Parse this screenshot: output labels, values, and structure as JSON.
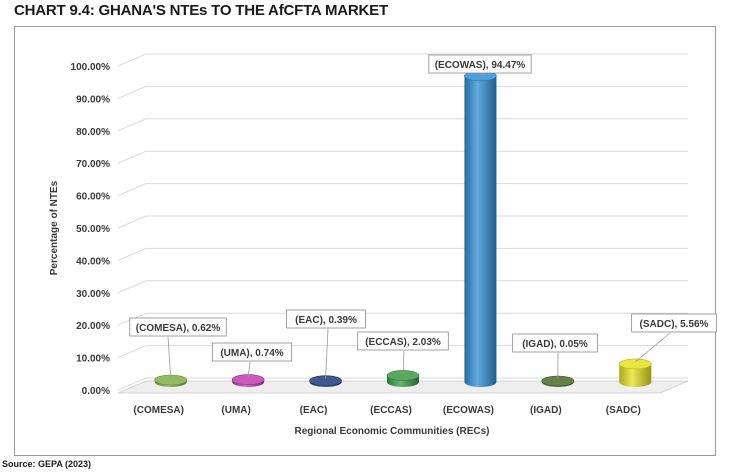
{
  "title": "CHART 9.4: GHANA'S NTEs TO THE AfCFTA MARKET",
  "source": "Source: GEPA (2023)",
  "chart_data": {
    "type": "bar",
    "categories": [
      "(COMESA)",
      "(UMA)",
      "(EAC)",
      "(ECCAS)",
      "(ECOWAS)",
      "(IGAD)",
      "(SADC)"
    ],
    "values": [
      0.62,
      0.74,
      0.39,
      2.03,
      94.47,
      0.05,
      5.56
    ],
    "data_labels": [
      "(COMESA), 0.62%",
      "(UMA), 0.74%",
      "(EAC), 0.39%",
      "(ECCAS), 2.03%",
      "(ECOWAS), 94.47%",
      "(IGAD), 0.05%",
      "(SADC), 5.56%"
    ],
    "colors": [
      "#7fae45",
      "#c03cb0",
      "#1f3d7a",
      "#3c9a48",
      "#2e8fd6",
      "#4a6b2a",
      "#e6e020"
    ],
    "yticks": [
      "0.00%",
      "10.00%",
      "20.00%",
      "30.00%",
      "40.00%",
      "50.00%",
      "60.00%",
      "70.00%",
      "80.00%",
      "90.00%",
      "100.00%"
    ],
    "ylim": [
      0,
      100
    ],
    "xlabel": "Regional Economic Communities (RECs)",
    "ylabel": "Percentage of NTEs",
    "grid": true,
    "legend": "none"
  }
}
